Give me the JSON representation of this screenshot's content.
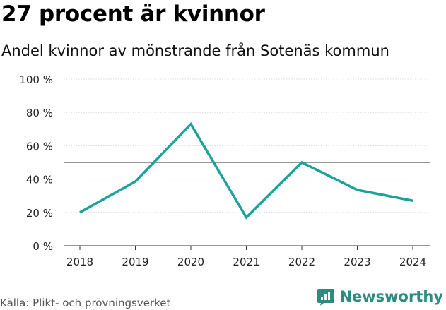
{
  "header": {
    "title": "27 procent är kvinnor",
    "subtitle": "Andel kvinnor av mönstrande från Sotenäs kommun"
  },
  "footer": {
    "source": "Källa: Plikt- och prövningsverket",
    "brand": "Newsworthy"
  },
  "colors": {
    "line": "#1aa39a",
    "reference_line": "#777777",
    "brand": "#2e8b7f"
  },
  "chart_data": {
    "type": "line",
    "title": "27 procent är kvinnor",
    "subtitle": "Andel kvinnor av mönstrande från Sotenäs kommun",
    "xlabel": "",
    "ylabel": "",
    "categories": [
      "2018",
      "2019",
      "2020",
      "2021",
      "2022",
      "2023",
      "2024"
    ],
    "series": [
      {
        "name": "Andel kvinnor",
        "values": [
          20,
          38.5,
          73,
          17,
          50,
          33.5,
          27
        ]
      }
    ],
    "ylim": [
      0,
      100
    ],
    "yticks": [
      0,
      20,
      40,
      60,
      80,
      100
    ],
    "ytick_labels": [
      "0 %",
      "20 %",
      "40 %",
      "60 %",
      "80 %",
      "100 %"
    ],
    "reference_line": 50,
    "grid": true,
    "legend": "none"
  }
}
